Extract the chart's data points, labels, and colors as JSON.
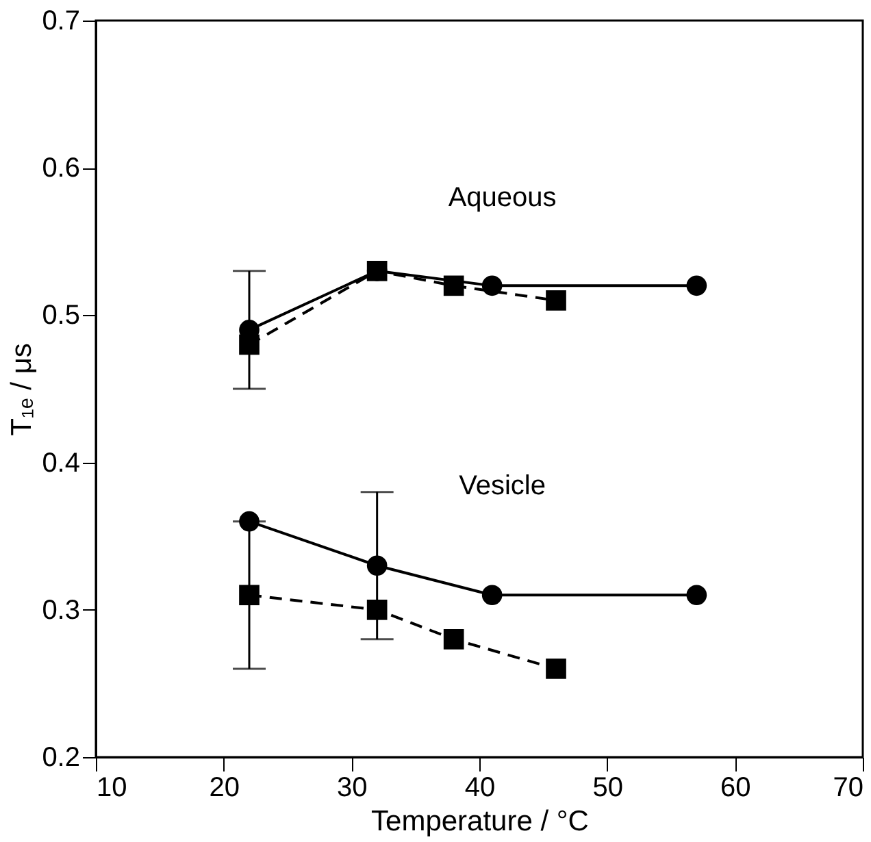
{
  "chart_data": {
    "type": "line",
    "xlabel": "Temperature / °C",
    "ylabel": "T₁ₑ / μs",
    "xlim": [
      10,
      70
    ],
    "xticks": [
      10,
      20,
      30,
      40,
      50,
      60,
      70
    ],
    "ylim": [
      0.2,
      0.7
    ],
    "yticks": [
      0.2,
      0.3,
      0.4,
      0.5,
      0.6,
      0.7
    ],
    "grid": false,
    "annotations": [
      "Aqueous",
      "Vesicle"
    ],
    "series": [
      {
        "x": [
          22,
          32,
          41,
          57
        ],
        "values": [
          0.49,
          0.53,
          0.52,
          0.52
        ],
        "errors": [
          0.04,
          null,
          null,
          null
        ],
        "color": "#000000",
        "marker": "circle",
        "line_style": "solid"
      },
      {
        "x": [
          22,
          32,
          38,
          46
        ],
        "values": [
          0.48,
          0.53,
          0.52,
          0.51
        ],
        "color": "#000000",
        "marker": "square",
        "line_style": "dashed"
      },
      {
        "x": [
          22,
          32,
          41,
          57
        ],
        "values": [
          0.36,
          0.33,
          0.31,
          0.31
        ],
        "errors": [
          null,
          0.05,
          null,
          null
        ],
        "color": "#000000",
        "marker": "circle",
        "line_style": "solid"
      },
      {
        "x": [
          22,
          32,
          38,
          46
        ],
        "values": [
          0.31,
          0.3,
          0.28,
          0.26
        ],
        "errors": [
          0.05,
          null,
          null,
          null
        ],
        "color": "#000000",
        "marker": "square",
        "line_style": "dashed"
      }
    ]
  }
}
